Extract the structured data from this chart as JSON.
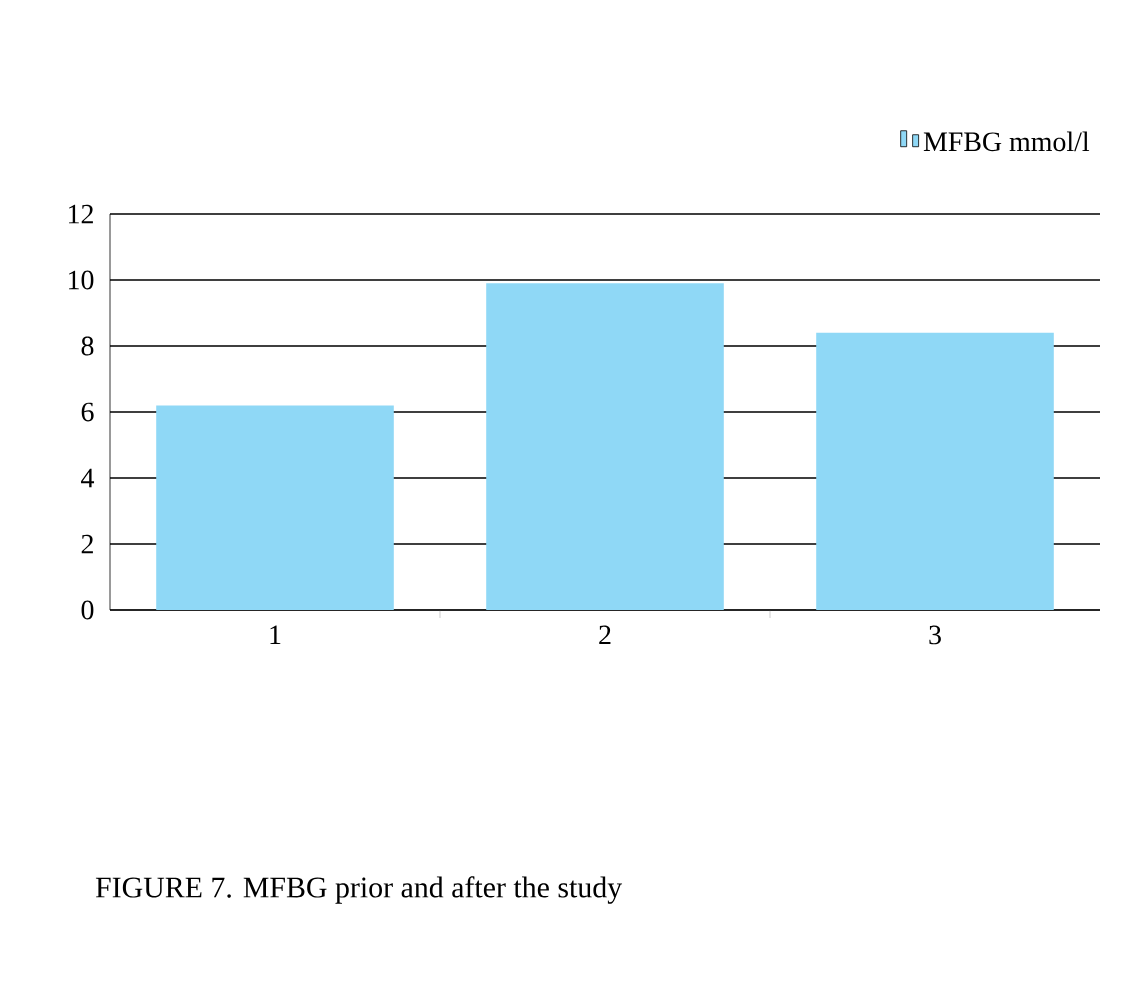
{
  "chart_data": {
    "type": "bar",
    "categories": [
      "1",
      "2",
      "3"
    ],
    "series": [
      {
        "name": "MFBG mmol/l",
        "color": "#8fd8f6",
        "values": [
          6.2,
          9.9,
          8.4
        ]
      }
    ],
    "ylim": [
      0,
      12
    ],
    "yticks": [
      0,
      2,
      4,
      6,
      8,
      10,
      12
    ],
    "grid": "y",
    "legend": "top right",
    "annotations": [
      "FIGURE 7.  MFBG prior and after the study"
    ]
  }
}
